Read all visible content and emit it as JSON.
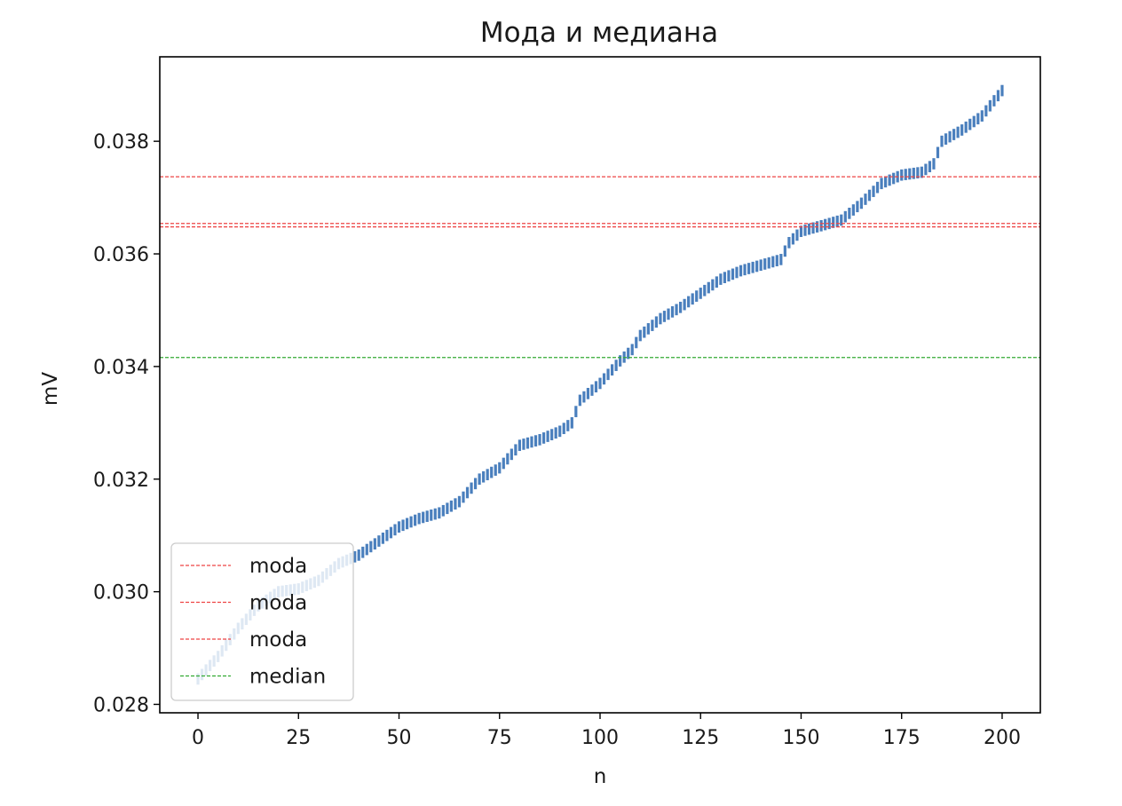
{
  "chart_data": {
    "type": "line",
    "title": "Мода и медиана",
    "xlabel": "n",
    "ylabel": "mV",
    "xlim": [
      -9.5,
      209.5
    ],
    "ylim": [
      0.02785,
      0.0395
    ],
    "xticks": [
      0,
      25,
      50,
      75,
      100,
      125,
      150,
      175,
      200
    ],
    "xtick_labels": [
      "0",
      "25",
      "50",
      "75",
      "100",
      "125",
      "150",
      "175",
      "200"
    ],
    "yticks": [
      0.028,
      0.03,
      0.032,
      0.034,
      0.036,
      0.038
    ],
    "ytick_labels": [
      "0.028",
      "0.030",
      "0.032",
      "0.034",
      "0.036",
      "0.038"
    ],
    "grid": false,
    "legend_position": "lower-left",
    "series": [
      {
        "kind": "interval-bars",
        "color": "#4a7fbd",
        "interval_half_width": 0.0001,
        "x": [
          0,
          5,
          10,
          15,
          20,
          25,
          30,
          35,
          40,
          45,
          50,
          55,
          60,
          65,
          70,
          75,
          80,
          85,
          90,
          93,
          95,
          100,
          105,
          108,
          110,
          115,
          120,
          125,
          130,
          135,
          140,
          145,
          147,
          150,
          155,
          160,
          165,
          170,
          175,
          180,
          183,
          185,
          190,
          195,
          200
        ],
        "y": [
          0.02845,
          0.02885,
          0.02935,
          0.02975,
          0.03,
          0.03005,
          0.0302,
          0.0305,
          0.03065,
          0.0309,
          0.03115,
          0.0313,
          0.0314,
          0.0316,
          0.032,
          0.0322,
          0.0326,
          0.0327,
          0.03285,
          0.033,
          0.0334,
          0.0337,
          0.0341,
          0.0343,
          0.03455,
          0.03485,
          0.03505,
          0.0353,
          0.03555,
          0.0357,
          0.0358,
          0.0359,
          0.0362,
          0.0364,
          0.0365,
          0.0366,
          0.0369,
          0.03725,
          0.0374,
          0.03745,
          0.0376,
          0.038,
          0.0382,
          0.03845,
          0.0389
        ]
      }
    ],
    "hlines": [
      {
        "name": "moda",
        "y": 0.03737,
        "color": "#ee4444"
      },
      {
        "name": "moda",
        "y": 0.03654,
        "color": "#ee4444"
      },
      {
        "name": "moda",
        "y": 0.03648,
        "color": "#ee4444"
      },
      {
        "name": "median",
        "y": 0.03416,
        "color": "#33aa33"
      }
    ],
    "legend": [
      "moda",
      "moda",
      "moda",
      "median"
    ]
  }
}
